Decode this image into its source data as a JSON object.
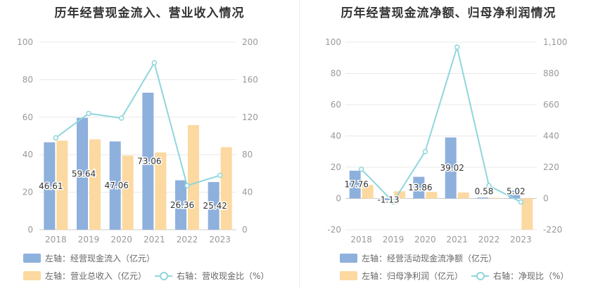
{
  "colors": {
    "bar1": "#8eb0dc",
    "bar2": "#fcd9a0",
    "line": "#8fd6dc",
    "grid": "#e8e8e8",
    "axis_text": "#999999"
  },
  "chart_data": [
    {
      "type": "bar",
      "title": "历年经营现金流入、营业收入情况",
      "categories": [
        "2018",
        "2019",
        "2020",
        "2021",
        "2022",
        "2023"
      ],
      "left_axis": {
        "ylim": [
          0,
          100
        ],
        "ticks": [
          "0",
          "20",
          "40",
          "60",
          "80",
          "100"
        ]
      },
      "right_axis": {
        "ylim": [
          0,
          200
        ],
        "ticks": [
          "0",
          "40",
          "80",
          "120",
          "160",
          "200"
        ]
      },
      "series": [
        {
          "name": "左轴：经营现金流入（亿元）",
          "axis": "left",
          "kind": "bar",
          "values": [
            46.61,
            59.64,
            47.06,
            73.06,
            26.36,
            25.42
          ],
          "labels": [
            "46.61",
            "59.64",
            "47.06",
            "73.06",
            "26.36",
            "25.42"
          ]
        },
        {
          "name": "左轴：营业总收入（亿元）",
          "axis": "left",
          "kind": "bar",
          "values": [
            47.5,
            48.2,
            39.5,
            41.2,
            55.8,
            44.0
          ]
        },
        {
          "name": "右轴：营收现金比（%）",
          "axis": "right",
          "kind": "line",
          "values": [
            98,
            124,
            119,
            178,
            47,
            58
          ]
        }
      ]
    },
    {
      "type": "bar",
      "title": "历年经营现金流净额、归母净利润情况",
      "categories": [
        "2018",
        "2019",
        "2020",
        "2021",
        "2022",
        "2023"
      ],
      "left_axis": {
        "ylim": [
          -20,
          100
        ],
        "ticks": [
          "-20",
          "0",
          "20",
          "40",
          "60",
          "80",
          "100"
        ]
      },
      "right_axis": {
        "ylim": [
          -220,
          1100
        ],
        "ticks": [
          "-220",
          "0",
          "220",
          "440",
          "660",
          "880",
          "1,100"
        ]
      },
      "series": [
        {
          "name": "左轴：经营活动现金流净额（亿元）",
          "axis": "left",
          "kind": "bar",
          "values": [
            17.76,
            -1.13,
            13.86,
            39.02,
            0.58,
            5.02
          ],
          "labels": [
            "17.76",
            "-1.13",
            "13.86",
            "39.02",
            "0.58",
            "5.02"
          ]
        },
        {
          "name": "左轴：归母净利润（亿元）",
          "axis": "left",
          "kind": "bar",
          "values": [
            8.6,
            4.6,
            4.2,
            3.8,
            0.4,
            -20.0
          ]
        },
        {
          "name": "右轴：净现比（%）",
          "axis": "right",
          "kind": "line",
          "values": [
            205,
            -24,
            330,
            1065,
            90,
            -25
          ]
        }
      ]
    }
  ]
}
